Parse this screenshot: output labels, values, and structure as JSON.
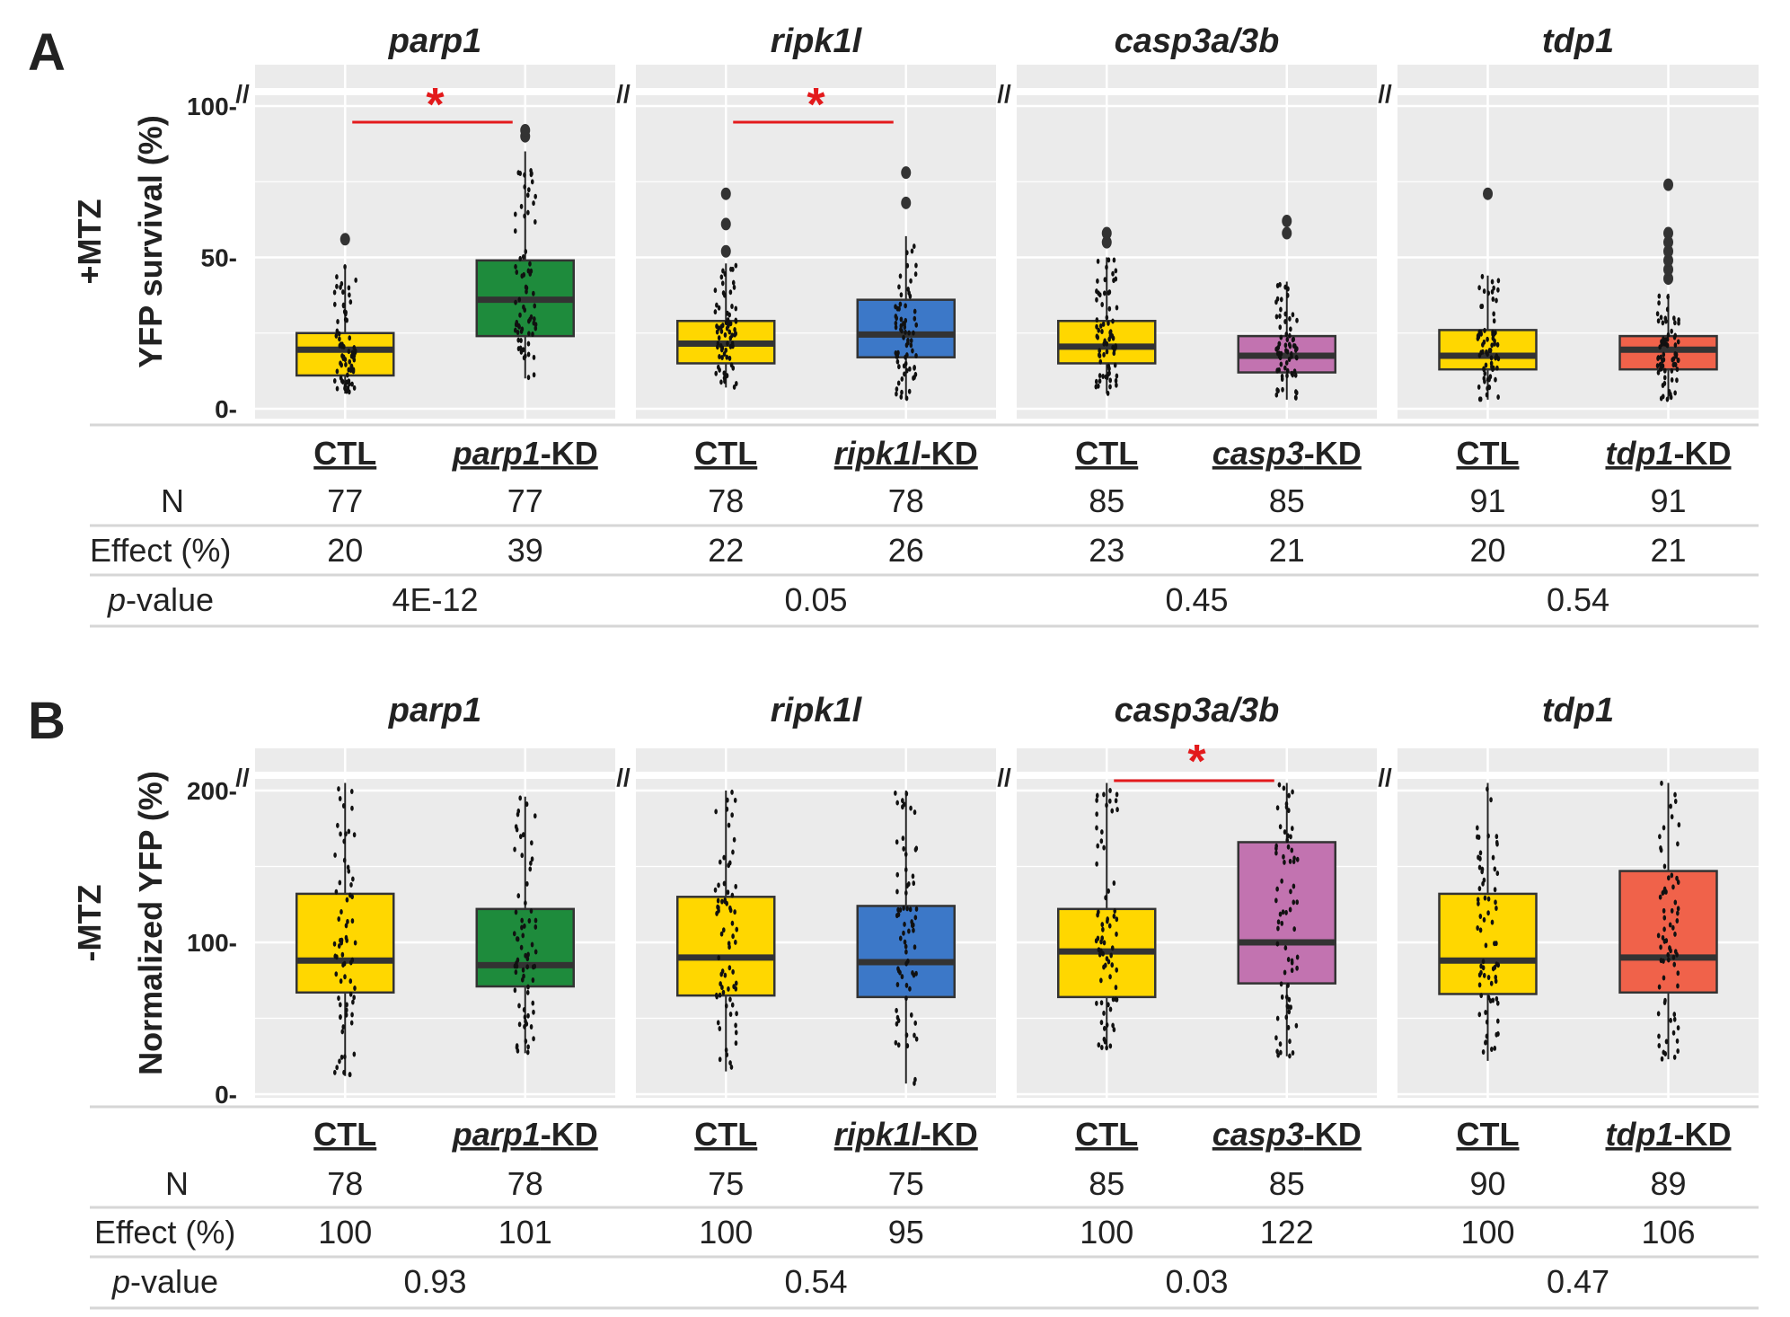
{
  "chart_data": [
    {
      "panel": "A",
      "type": "box",
      "row_label": "+MTZ",
      "ylabel": "YFP survival (%)",
      "yticks": [
        0,
        50,
        100
      ],
      "ylim": [
        0,
        100
      ],
      "table_row_labels": {
        "n": "N",
        "effect": "Effect (%)",
        "p_italic": "p",
        "p_rest": "-value"
      },
      "groups": [
        {
          "title": "parp1",
          "boxes": [
            {
              "label_italic": "",
              "label_rest": "CTL",
              "color": "#FFD700",
              "q1": 11,
              "median": 19.5,
              "q3": 25,
              "wlo": 5,
              "whi": 47,
              "outliers": [
                56
              ],
              "n": "77",
              "effect": "20"
            },
            {
              "label_italic": "parp1",
              "label_rest": "-KD",
              "color": "#1E8B3C",
              "q1": 24,
              "median": 36,
              "q3": 49,
              "wlo": 10,
              "whi": 85,
              "outliers": [
                90,
                92
              ],
              "n": "77",
              "effect": "39"
            }
          ],
          "pvalue": "4E-12",
          "significant": true,
          "sig_mark": "*"
        },
        {
          "title": "ripk1l",
          "boxes": [
            {
              "label_italic": "",
              "label_rest": "CTL",
              "color": "#FFD700",
              "q1": 15,
              "median": 21.5,
              "q3": 29,
              "wlo": 7,
              "whi": 48,
              "outliers": [
                52,
                61,
                71
              ],
              "n": "78",
              "effect": "22"
            },
            {
              "label_italic": "ripk1l",
              "label_rest": "-KD",
              "color": "#3C78C8",
              "q1": 17,
              "median": 24.5,
              "q3": 36,
              "wlo": 3,
              "whi": 57,
              "outliers": [
                68,
                78
              ],
              "n": "78",
              "effect": "26"
            }
          ],
          "pvalue": "0.05",
          "significant": true,
          "sig_mark": "*"
        },
        {
          "title": "casp3a/3b",
          "boxes": [
            {
              "label_italic": "",
              "label_rest": "CTL",
              "color": "#FFD700",
              "q1": 15,
              "median": 20.5,
              "q3": 29,
              "wlo": 5,
              "whi": 50,
              "outliers": [
                55,
                58
              ],
              "n": "85",
              "effect": "23"
            },
            {
              "label_italic": "casp3",
              "label_rest": "-KD",
              "color": "#C273B0",
              "q1": 12,
              "median": 17.5,
              "q3": 24,
              "wlo": 3,
              "whi": 42,
              "outliers": [
                58,
                62
              ],
              "n": "85",
              "effect": "21"
            }
          ],
          "pvalue": "0.45",
          "significant": false,
          "sig_mark": ""
        },
        {
          "title": "tdp1",
          "boxes": [
            {
              "label_italic": "",
              "label_rest": "CTL",
              "color": "#FFD700",
              "q1": 13,
              "median": 17.5,
              "q3": 26,
              "wlo": 3,
              "whi": 44,
              "outliers": [
                71
              ],
              "n": "91",
              "effect": "20"
            },
            {
              "label_italic": "tdp1",
              "label_rest": "-KD",
              "color": "#F0624A",
              "q1": 13,
              "median": 19.5,
              "q3": 24,
              "wlo": 3,
              "whi": 38,
              "outliers": [
                43,
                46,
                49,
                52,
                55,
                58,
                74
              ],
              "n": "91",
              "effect": "21"
            }
          ],
          "pvalue": "0.54",
          "significant": false,
          "sig_mark": ""
        }
      ]
    },
    {
      "panel": "B",
      "type": "box",
      "row_label": "-MTZ",
      "ylabel": "Normalized YFP (%)",
      "yticks": [
        0,
        100,
        200
      ],
      "ylim": [
        0,
        200
      ],
      "table_row_labels": {
        "n": "N",
        "effect": "Effect (%)",
        "p_italic": "p",
        "p_rest": "-value"
      },
      "groups": [
        {
          "title": "parp1",
          "boxes": [
            {
              "label_italic": "",
              "label_rest": "CTL",
              "color": "#FFD700",
              "q1": 67,
              "median": 88,
              "q3": 132,
              "wlo": 12,
              "whi": 205,
              "outliers": [],
              "n": "78",
              "effect": "100"
            },
            {
              "label_italic": "parp1",
              "label_rest": "-KD",
              "color": "#1E8B3C",
              "q1": 71,
              "median": 85,
              "q3": 122,
              "wlo": 27,
              "whi": 196,
              "outliers": [],
              "n": "78",
              "effect": "101"
            }
          ],
          "pvalue": "0.93",
          "significant": false,
          "sig_mark": ""
        },
        {
          "title": "ripk1l",
          "boxes": [
            {
              "label_italic": "",
              "label_rest": "CTL",
              "color": "#FFD700",
              "q1": 65,
              "median": 90,
              "q3": 130,
              "wlo": 15,
              "whi": 200,
              "outliers": [],
              "n": "75",
              "effect": "100"
            },
            {
              "label_italic": "ripk1l",
              "label_rest": "-KD",
              "color": "#3C78C8",
              "q1": 64,
              "median": 87,
              "q3": 124,
              "wlo": 7,
              "whi": 200,
              "outliers": [],
              "n": "75",
              "effect": "95"
            }
          ],
          "pvalue": "0.54",
          "significant": false,
          "sig_mark": ""
        },
        {
          "title": "casp3a/3b",
          "boxes": [
            {
              "label_italic": "",
              "label_rest": "CTL",
              "color": "#FFD700",
              "q1": 64,
              "median": 94,
              "q3": 122,
              "wlo": 30,
              "whi": 205,
              "outliers": [],
              "n": "85",
              "effect": "100"
            },
            {
              "label_italic": "casp3",
              "label_rest": "-KD",
              "color": "#C273B0",
              "q1": 73,
              "median": 100,
              "q3": 166,
              "wlo": 25,
              "whi": 205,
              "outliers": [],
              "n": "85",
              "effect": "122"
            }
          ],
          "pvalue": "0.03",
          "significant": true,
          "sig_mark": "*"
        },
        {
          "title": "tdp1",
          "boxes": [
            {
              "label_italic": "",
              "label_rest": "CTL",
              "color": "#FFD700",
              "q1": 66,
              "median": 88,
              "q3": 132,
              "wlo": 22,
              "whi": 205,
              "outliers": [],
              "n": "90",
              "effect": "100"
            },
            {
              "label_italic": "tdp1",
              "label_rest": "-KD",
              "color": "#F0624A",
              "q1": 67,
              "median": 90,
              "q3": 147,
              "wlo": 23,
              "whi": 205,
              "outliers": [],
              "n": "89",
              "effect": "106"
            }
          ],
          "pvalue": "0.47",
          "significant": false,
          "sig_mark": ""
        }
      ]
    }
  ]
}
